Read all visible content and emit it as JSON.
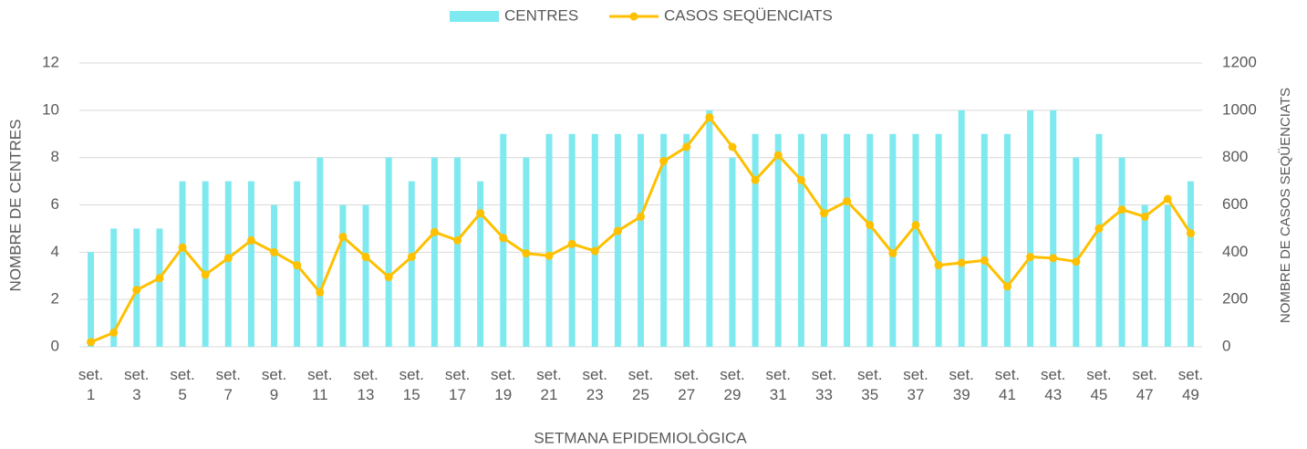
{
  "chart_data": {
    "type": "bar-line",
    "x_label": "SETMANA EPIDEMIOLÒGICA",
    "y_label": "NOMBRE DE CENTRES",
    "y2_label": "NOMBRE DE CASOS SEQÜENCIATS",
    "categories": [
      "set. 1",
      null,
      "set. 3",
      null,
      "set. 5",
      null,
      "set. 7",
      null,
      "set. 9",
      null,
      "set. 11",
      null,
      "set. 13",
      null,
      "set. 15",
      null,
      "set. 17",
      null,
      "set. 19",
      null,
      "set. 21",
      null,
      "set. 23",
      null,
      "set. 25",
      null,
      "set. 27",
      null,
      "set. 29",
      null,
      "set. 31",
      null,
      "set. 33",
      null,
      "set. 35",
      null,
      "set. 37",
      null,
      "set. 39",
      null,
      "set. 41",
      null,
      "set. 43",
      null,
      "set. 45",
      null,
      "set. 47",
      null,
      "set. 49"
    ],
    "series": [
      {
        "name": "CENTRES",
        "type": "bar",
        "color": "#7fe9f0",
        "values": [
          4,
          5,
          5,
          5,
          7,
          7,
          7,
          7,
          6,
          7,
          8,
          6,
          6,
          8,
          7,
          8,
          8,
          7,
          9,
          8,
          9,
          9,
          9,
          9,
          9,
          9,
          9,
          10,
          8,
          9,
          9,
          9,
          9,
          9,
          9,
          9,
          9,
          9,
          10,
          9,
          9,
          10,
          10,
          8,
          9,
          8,
          6,
          6,
          7
        ]
      },
      {
        "name": "CASOS SEQÜENCIATS",
        "type": "line",
        "axis": "y2",
        "color": "#ffc000",
        "values": [
          20,
          60,
          240,
          290,
          420,
          305,
          375,
          450,
          400,
          345,
          230,
          465,
          380,
          295,
          380,
          485,
          450,
          565,
          460,
          395,
          385,
          435,
          405,
          490,
          550,
          785,
          845,
          970,
          845,
          705,
          810,
          705,
          565,
          615,
          515,
          395,
          515,
          345,
          355,
          365,
          255,
          380,
          375,
          360,
          500,
          580,
          550,
          625,
          480
        ]
      }
    ],
    "ylim": [
      0,
      12
    ],
    "yticks": [
      0,
      2,
      4,
      6,
      8,
      10,
      12
    ],
    "y2lim": [
      0,
      1200
    ],
    "y2ticks": [
      0,
      200,
      400,
      600,
      800,
      1000,
      1200
    ],
    "grid": true,
    "legend": "top"
  }
}
